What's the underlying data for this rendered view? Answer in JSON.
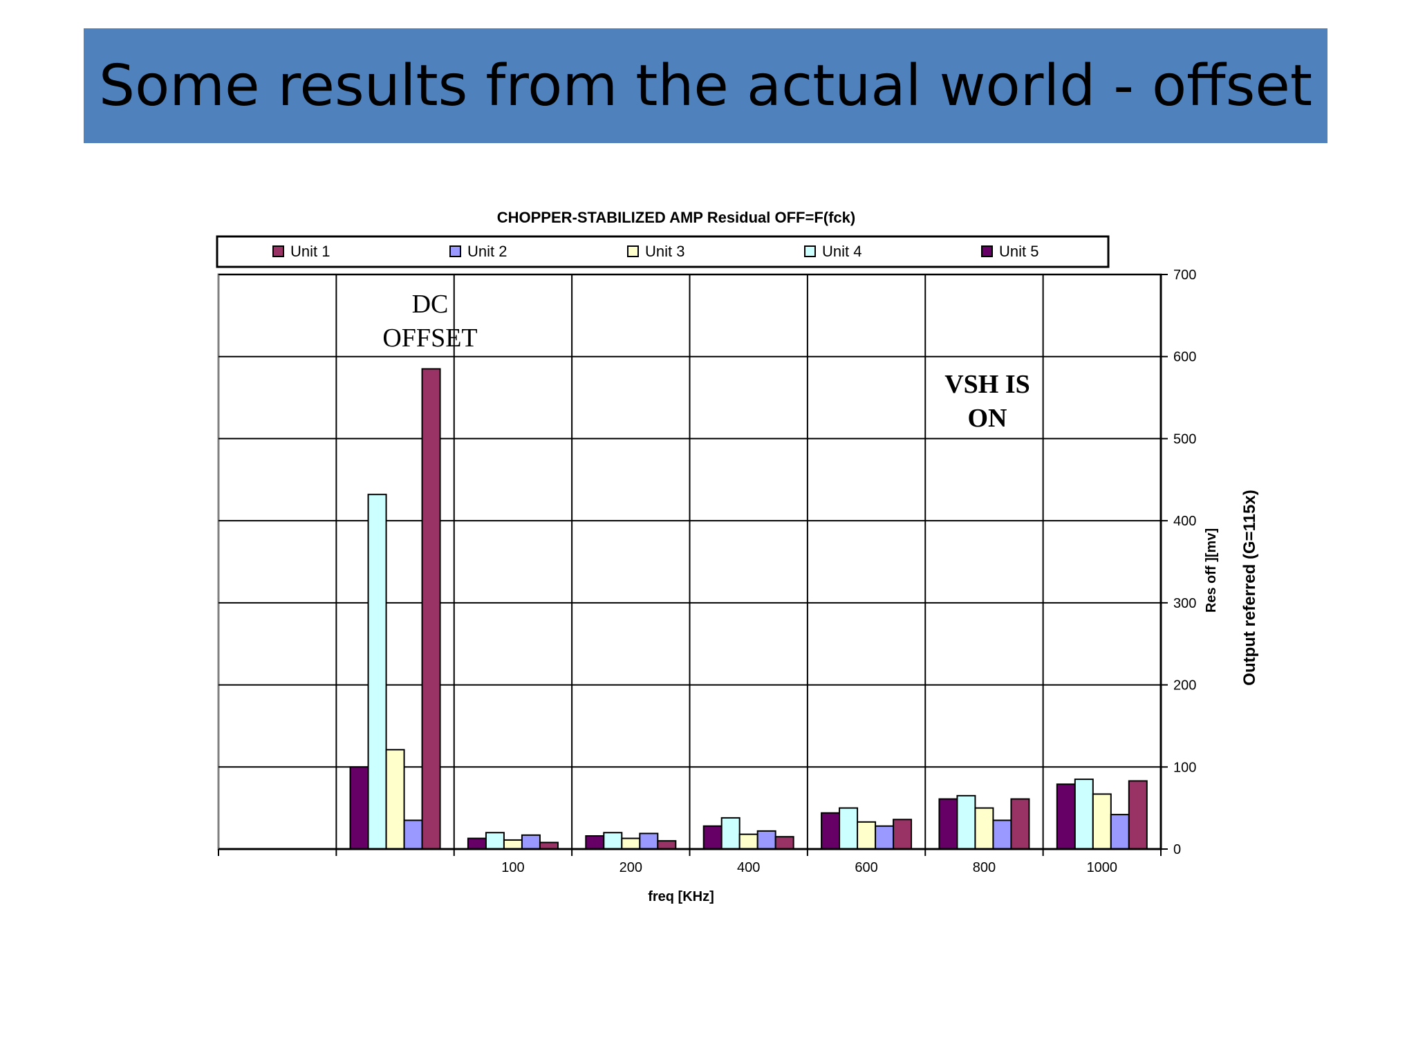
{
  "slide": {
    "title": "Some results from the actual world - offset"
  },
  "chart_data": {
    "type": "bar",
    "title": "CHOPPER-STABILIZED AMP Residual OFF=F(fck)",
    "xlabel": "freq [KHz]",
    "ylabel": "Res off ][mv]",
    "ylabel2": "Output referred (G=115x)",
    "ylim": [
      0,
      700
    ],
    "yticks": [
      0,
      100,
      200,
      300,
      400,
      500,
      600,
      700
    ],
    "grid": true,
    "legend_position": "top",
    "categories": [
      "",
      "",
      "100",
      "200",
      "400",
      "600",
      "800",
      "1000"
    ],
    "bar_order": [
      "Unit 5",
      "Unit 4",
      "Unit 3",
      "Unit 2",
      "Unit 1"
    ],
    "series": [
      {
        "name": "Unit 1",
        "color": "#993366",
        "values": [
          null,
          585,
          8,
          10,
          15,
          36,
          61,
          83
        ]
      },
      {
        "name": "Unit 2",
        "color": "#9999ff",
        "values": [
          null,
          35,
          17,
          19,
          22,
          28,
          35,
          42
        ]
      },
      {
        "name": "Unit 3",
        "color": "#ffffcc",
        "values": [
          null,
          121,
          11,
          13,
          18,
          33,
          50,
          67
        ]
      },
      {
        "name": "Unit 4",
        "color": "#ccffff",
        "values": [
          null,
          432,
          20,
          20,
          38,
          50,
          65,
          85
        ]
      },
      {
        "name": "Unit 5",
        "color": "#660066",
        "values": [
          null,
          100,
          13,
          16,
          28,
          44,
          61,
          79
        ]
      }
    ],
    "annotations": [
      {
        "text_lines": [
          "DC",
          "OFFSET"
        ],
        "style": "serif"
      },
      {
        "text_lines": [
          "VSH IS",
          "ON"
        ],
        "style": "serif-bold"
      }
    ]
  }
}
